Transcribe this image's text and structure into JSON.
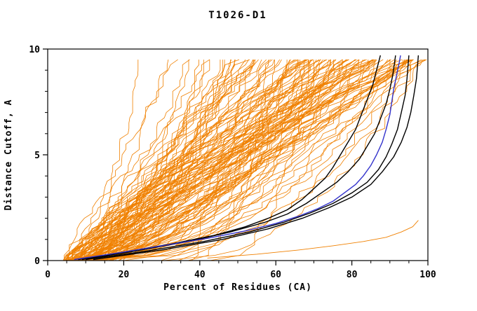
{
  "chart_data": {
    "type": "line",
    "title": "T1026-D1",
    "xlabel": "Percent of Residues (CA)",
    "ylabel": "Distance Cutoff, A",
    "xlim": [
      0,
      100
    ],
    "ylim": [
      0,
      10
    ],
    "grid": false,
    "legend": "none",
    "x_major_ticks": [
      0,
      20,
      40,
      60,
      80,
      100
    ],
    "x_minor_step": 5,
    "y_major_ticks": [
      0,
      5,
      10
    ],
    "y_minor_step": 1,
    "colors": {
      "ensemble": "#f08000",
      "highlight": "#000000",
      "best": "#3333cc",
      "axis": "#000000",
      "background": "#ffffff"
    },
    "series": [
      {
        "name": "highlight-black-1",
        "color": "#000000",
        "width": 1.4,
        "points": [
          [
            8,
            0.05
          ],
          [
            20,
            0.4
          ],
          [
            33,
            0.8
          ],
          [
            44,
            1.2
          ],
          [
            52,
            1.6
          ],
          [
            58,
            2.0
          ],
          [
            63,
            2.4
          ],
          [
            67,
            2.9
          ],
          [
            70,
            3.4
          ],
          [
            73,
            3.9
          ],
          [
            75,
            4.4
          ],
          [
            77,
            5.0
          ],
          [
            79,
            5.6
          ],
          [
            81,
            6.2
          ],
          [
            82.5,
            6.9
          ],
          [
            84,
            7.6
          ],
          [
            85.5,
            8.3
          ],
          [
            86.5,
            9.0
          ],
          [
            87.5,
            9.7
          ]
        ]
      },
      {
        "name": "highlight-black-2",
        "color": "#000000",
        "width": 1.4,
        "points": [
          [
            9,
            0.05
          ],
          [
            23,
            0.45
          ],
          [
            37,
            0.9
          ],
          [
            48,
            1.35
          ],
          [
            57,
            1.8
          ],
          [
            63,
            2.2
          ],
          [
            68,
            2.7
          ],
          [
            72,
            3.2
          ],
          [
            76,
            3.7
          ],
          [
            79,
            4.2
          ],
          [
            82,
            4.8
          ],
          [
            84,
            5.4
          ],
          [
            86,
            6.0
          ],
          [
            87.5,
            6.7
          ],
          [
            89,
            7.4
          ],
          [
            90,
            8.1
          ],
          [
            90.8,
            8.8
          ],
          [
            91.5,
            9.7
          ]
        ]
      },
      {
        "name": "highlight-black-3",
        "color": "#000000",
        "width": 1.4,
        "points": [
          [
            10,
            0.05
          ],
          [
            26,
            0.45
          ],
          [
            41,
            0.9
          ],
          [
            53,
            1.35
          ],
          [
            62,
            1.8
          ],
          [
            69,
            2.25
          ],
          [
            75,
            2.7
          ],
          [
            80,
            3.2
          ],
          [
            84,
            3.7
          ],
          [
            87,
            4.3
          ],
          [
            89,
            4.9
          ],
          [
            90.5,
            5.5
          ],
          [
            92,
            6.2
          ],
          [
            93,
            7.0
          ],
          [
            94,
            7.8
          ],
          [
            94.5,
            8.6
          ],
          [
            95,
            9.7
          ]
        ]
      },
      {
        "name": "highlight-black-4",
        "color": "#000000",
        "width": 1.4,
        "points": [
          [
            12,
            0.05
          ],
          [
            30,
            0.5
          ],
          [
            46,
            1.0
          ],
          [
            58,
            1.5
          ],
          [
            67,
            2.0
          ],
          [
            74,
            2.5
          ],
          [
            80,
            3.0
          ],
          [
            85,
            3.6
          ],
          [
            88,
            4.2
          ],
          [
            91,
            4.9
          ],
          [
            93,
            5.6
          ],
          [
            94.5,
            6.3
          ],
          [
            95.5,
            7.0
          ],
          [
            96.3,
            7.8
          ],
          [
            97,
            8.6
          ],
          [
            97.5,
            9.7
          ]
        ]
      },
      {
        "name": "best-model-blue",
        "color": "#3333cc",
        "width": 1.4,
        "points": [
          [
            7,
            0.05
          ],
          [
            18,
            0.35
          ],
          [
            30,
            0.7
          ],
          [
            42,
            1.05
          ],
          [
            52,
            1.4
          ],
          [
            60,
            1.75
          ],
          [
            66,
            2.1
          ],
          [
            71,
            2.45
          ],
          [
            75,
            2.8
          ],
          [
            78,
            3.2
          ],
          [
            81,
            3.6
          ],
          [
            83,
            4.0
          ],
          [
            85,
            4.5
          ],
          [
            86.5,
            5.0
          ],
          [
            88,
            5.6
          ],
          [
            89,
            6.2
          ],
          [
            90,
            6.9
          ],
          [
            90.5,
            7.5
          ],
          [
            91,
            8.1
          ],
          [
            91.8,
            8.8
          ],
          [
            92.5,
            9.4
          ],
          [
            92.8,
            9.7
          ]
        ]
      },
      {
        "name": "outlier-orange-flat",
        "color": "#f08000",
        "width": 0.9,
        "points": [
          [
            42,
            0.12
          ],
          [
            55,
            0.3
          ],
          [
            66,
            0.5
          ],
          [
            75,
            0.7
          ],
          [
            83,
            0.9
          ],
          [
            89,
            1.1
          ],
          [
            93,
            1.35
          ],
          [
            96,
            1.6
          ],
          [
            97.5,
            1.9
          ]
        ]
      }
    ],
    "ensemble": {
      "name": "all-predictions-orange",
      "color": "#f08000",
      "count": 130,
      "seed": 7,
      "line_width": 0.8,
      "x_start_range": [
        4,
        17
      ],
      "x_top_range": [
        24,
        100
      ],
      "shape_exp_range": [
        0.35,
        1.4
      ],
      "jitter": 3,
      "y_top": 9.7,
      "y_step": 0.25
    }
  }
}
